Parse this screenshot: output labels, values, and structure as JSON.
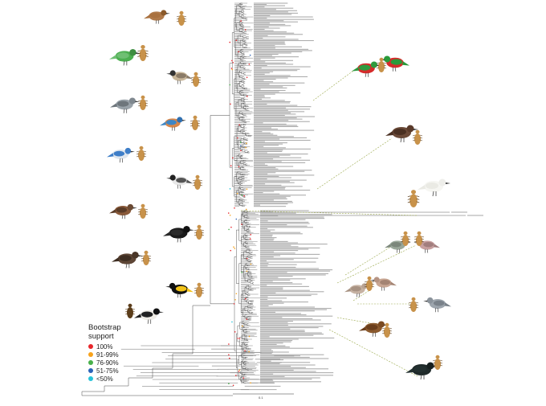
{
  "legend": {
    "title_line1": "Bootstrap",
    "title_line2": "support",
    "items": [
      {
        "label": "100%",
        "color": "#e8262b"
      },
      {
        "label": "91-99%",
        "color": "#f7a21b"
      },
      {
        "label": "76-90%",
        "color": "#48b04a"
      },
      {
        "label": "51-75%",
        "color": "#2b63b8"
      },
      {
        "label": "<50%",
        "color": "#27c3d9"
      }
    ]
  },
  "scale_label": "0.1",
  "colors": {
    "branch": "#4a4a4a",
    "leader": "#9aa84a",
    "tip_text": "#666666"
  },
  "illustrations": [
    {
      "name": "sunbird-icon"
    },
    {
      "name": "green-broadbill-icon"
    },
    {
      "name": "bulbul-icon"
    },
    {
      "name": "shrike-icon"
    },
    {
      "name": "kingfisher-icon"
    },
    {
      "name": "blue-bird-icon"
    },
    {
      "name": "monarch-icon"
    },
    {
      "name": "rail-icon"
    },
    {
      "name": "bird-of-paradise-icon"
    },
    {
      "name": "kite-icon"
    },
    {
      "name": "black-yellow-bird-icon"
    },
    {
      "name": "avocet-icon"
    },
    {
      "name": "red-parrot-icon"
    },
    {
      "name": "swift-icon"
    },
    {
      "name": "spoonbill-icon"
    },
    {
      "name": "green-pigeon-icon"
    },
    {
      "name": "dove-icon"
    },
    {
      "name": "ground-dove-icon"
    },
    {
      "name": "pitta-icon"
    },
    {
      "name": "cormorant-icon"
    },
    {
      "name": "louse-icon"
    }
  ]
}
